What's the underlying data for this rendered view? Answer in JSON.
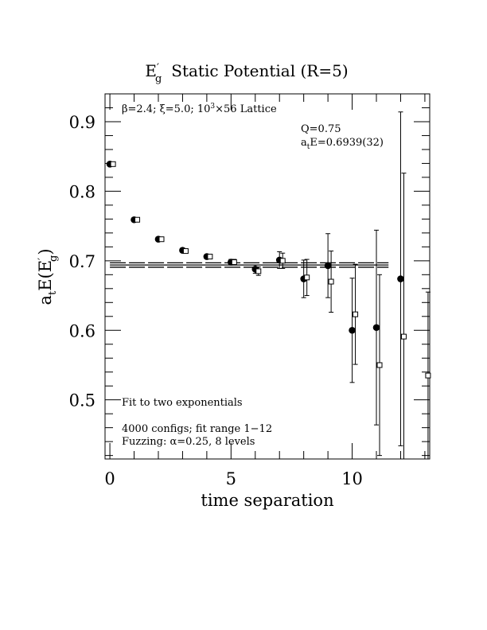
{
  "chart_data": {
    "type": "scatter",
    "title": {
      "main": "E",
      "sup": "′",
      "sub": "g",
      "rest": "Static Potential (R=5)"
    },
    "xlabel": "time separation",
    "ylabel": {
      "a": "a",
      "t": "t",
      "e": "E(E",
      "sup": "′",
      "sub": "g",
      "close": ")"
    },
    "xlim": [
      -0.2,
      13.2
    ],
    "ylim": [
      0.415,
      0.94
    ],
    "xticks": [
      {
        "v": 0,
        "label": "0"
      },
      {
        "v": 5,
        "label": "5"
      },
      {
        "v": 10,
        "label": "10"
      }
    ],
    "yticks": [
      {
        "v": 0.5,
        "label": "0.5"
      },
      {
        "v": 0.6,
        "label": "0.6"
      },
      {
        "v": 0.7,
        "label": "0.7"
      },
      {
        "v": 0.8,
        "label": "0.8"
      },
      {
        "v": 0.9,
        "label": "0.9"
      }
    ],
    "annotations": {
      "lattice": {
        "beta": "β=2.4;",
        "xi": "ξ=5.0;",
        "size": "10",
        "size_sup": "3",
        "rest": "×56 Lattice"
      },
      "q": "Q=0.75",
      "fit_energy": {
        "a": "a",
        "t": "t",
        "rest": "E=0.6939(32)"
      },
      "method": "Fit to two exponentials",
      "configs": "4000 configs; fit range 1−12",
      "fuzzing": "Fuzzing: α=0.25, 8 levels"
    },
    "fit": {
      "value": 0.6939,
      "error": 0.0032,
      "x_range": [
        0,
        11.5
      ]
    },
    "series": [
      {
        "marker": "filled-circle",
        "points": [
          {
            "x": 0,
            "y": 0.839,
            "err": 0.002
          },
          {
            "x": 1,
            "y": 0.759,
            "err": 0.002
          },
          {
            "x": 2,
            "y": 0.731,
            "err": 0.003
          },
          {
            "x": 3,
            "y": 0.715,
            "err": 0.003
          },
          {
            "x": 4,
            "y": 0.706,
            "err": 0.003
          },
          {
            "x": 5,
            "y": 0.698,
            "err": 0.004
          },
          {
            "x": 6,
            "y": 0.688,
            "err": 0.006
          },
          {
            "x": 7,
            "y": 0.701,
            "err": 0.012
          },
          {
            "x": 8,
            "y": 0.674,
            "err": 0.027
          },
          {
            "x": 9,
            "y": 0.693,
            "err": 0.046
          },
          {
            "x": 10,
            "y": 0.6,
            "err": 0.075
          },
          {
            "x": 11,
            "y": 0.604,
            "err": 0.14
          },
          {
            "x": 12,
            "y": 0.674,
            "err": 0.24
          }
        ]
      },
      {
        "marker": "open-square",
        "points": [
          {
            "x": 0,
            "y": 0.839,
            "err": 0.002
          },
          {
            "x": 1,
            "y": 0.759,
            "err": 0.002
          },
          {
            "x": 2,
            "y": 0.731,
            "err": 0.003
          },
          {
            "x": 3,
            "y": 0.714,
            "err": 0.003
          },
          {
            "x": 4,
            "y": 0.706,
            "err": 0.003
          },
          {
            "x": 5,
            "y": 0.698,
            "err": 0.004
          },
          {
            "x": 6,
            "y": 0.685,
            "err": 0.006
          },
          {
            "x": 7,
            "y": 0.7,
            "err": 0.011
          },
          {
            "x": 8,
            "y": 0.676,
            "err": 0.026
          },
          {
            "x": 9,
            "y": 0.67,
            "err": 0.044
          },
          {
            "x": 10,
            "y": 0.623,
            "err": 0.072
          },
          {
            "x": 11,
            "y": 0.55,
            "err": 0.13
          },
          {
            "x": 12,
            "y": 0.591,
            "err": 0.235
          },
          {
            "x": 13,
            "y": 0.535,
            "err": 0.12
          }
        ]
      }
    ]
  }
}
